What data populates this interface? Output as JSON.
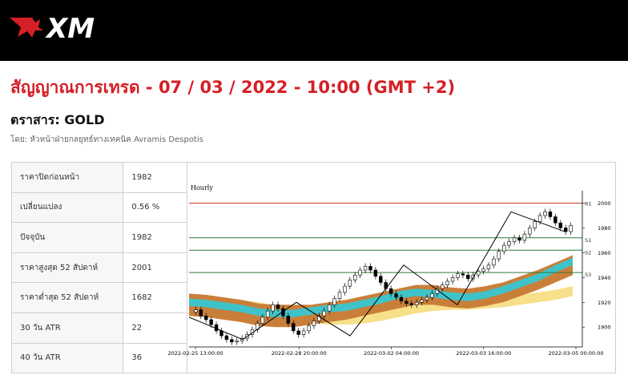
{
  "brand": {
    "logo_text": "XM",
    "accent_color": "#d51f26"
  },
  "signal": {
    "title": "สัญญาณการเทรด - 07 / 03 / 2022 - 10:00 (GMT +2)",
    "instrument": "ตราสาร: GOLD",
    "author": "โดย: หัวหน้าฝ่ายกลยุทธ์ทางเทคนิค Avramis Despotis"
  },
  "stats": [
    {
      "label": "ราคาปิดก่อนหน้า",
      "value": "1982"
    },
    {
      "label": "เปลี่ยนแปลง",
      "value": "0.56 %"
    },
    {
      "label": "ปัจจุบัน",
      "value": "1982"
    },
    {
      "label": "ราคาสูงสุด 52 สัปดาห์",
      "value": "2001"
    },
    {
      "label": "ราคาต่ำสุด 52 สัปดาห์",
      "value": "1682"
    },
    {
      "label": "30 วัน ATR",
      "value": "22"
    },
    {
      "label": "40 วัน ATR",
      "value": "36"
    }
  ],
  "chart_data": {
    "type": "line",
    "title": "Hourly",
    "x_ticks": [
      "2022-02-25 13:00:00",
      "2022-02-28 20:00:00",
      "2022-03-02 04:00:00",
      "2022-03-03 16:00:00",
      "2022-03-05 00:00:00"
    ],
    "y_ticks": [
      1900,
      1920,
      1940,
      1960,
      1980,
      2000
    ],
    "ylim": [
      1884,
      2010
    ],
    "levels": [
      {
        "name": "R1",
        "value": 2000,
        "color": "#c0392b"
      },
      {
        "name": "S1",
        "value": 1972,
        "color": "#2e7d32"
      },
      {
        "name": "S2",
        "value": 1962,
        "color": "#2e7d32"
      },
      {
        "name": "S3",
        "value": 1944,
        "color": "#2e7d32"
      }
    ],
    "zigzag": [
      1908,
      1890,
      1920,
      1893,
      1950,
      1918,
      1993,
      1977
    ],
    "price": [
      1912,
      1914,
      1909,
      1906,
      1902,
      1897,
      1893,
      1890,
      1888,
      1889,
      1891,
      1894,
      1898,
      1903,
      1908,
      1913,
      1918,
      1915,
      1909,
      1903,
      1897,
      1894,
      1897,
      1901,
      1905,
      1909,
      1913,
      1918,
      1923,
      1928,
      1933,
      1938,
      1942,
      1946,
      1949,
      1946,
      1941,
      1936,
      1931,
      1927,
      1924,
      1921,
      1919,
      1918,
      1920,
      1922,
      1924,
      1927,
      1931,
      1934,
      1937,
      1940,
      1943,
      1942,
      1939,
      1942,
      1945,
      1947,
      1950,
      1955,
      1961,
      1966,
      1969,
      1972,
      1970,
      1975,
      1980,
      1985,
      1990,
      1993,
      1989,
      1984,
      1980,
      1977,
      1982
    ],
    "bands": {
      "teal_center": [
        1920,
        1919,
        1917,
        1915,
        1912,
        1911,
        1911,
        1913,
        1915,
        1916,
        1919,
        1922,
        1926,
        1928,
        1927,
        1925,
        1924,
        1926,
        1930,
        1935,
        1940,
        1947,
        1953
      ],
      "teal_width": [
        3,
        3,
        3,
        3,
        3,
        3,
        3,
        3,
        3,
        3,
        3,
        3,
        3,
        3,
        3,
        3,
        3,
        3,
        3,
        3,
        3,
        3,
        3
      ],
      "orange_center": [
        1918,
        1917,
        1915,
        1913,
        1910,
        1909,
        1909,
        1910,
        1912,
        1914,
        1917,
        1920,
        1923,
        1926,
        1926,
        1924,
        1923,
        1925,
        1928,
        1933,
        1938,
        1944,
        1950
      ],
      "orange_width": [
        9,
        9,
        9,
        9,
        9,
        9,
        9,
        8,
        8,
        8,
        8,
        8,
        8,
        8,
        8,
        8,
        8,
        8,
        8,
        8,
        8,
        8,
        8
      ],
      "yellow_center": [
        1922,
        1921,
        1920,
        1918,
        1916,
        1913,
        1910,
        1908,
        1906,
        1906,
        1907,
        1909,
        1912,
        1915,
        1917,
        1918,
        1918,
        1919,
        1920,
        1922,
        1924,
        1926,
        1929
      ],
      "yellow_width": [
        4,
        4,
        4,
        4,
        4,
        4,
        4,
        4,
        4,
        4,
        4,
        4,
        4,
        4,
        4,
        4,
        4,
        4,
        4,
        4,
        4,
        4,
        4
      ]
    },
    "colors": {
      "teal": "#3fc3c9",
      "orange": "#c97f3a",
      "yellow": "#f7e08a"
    }
  }
}
